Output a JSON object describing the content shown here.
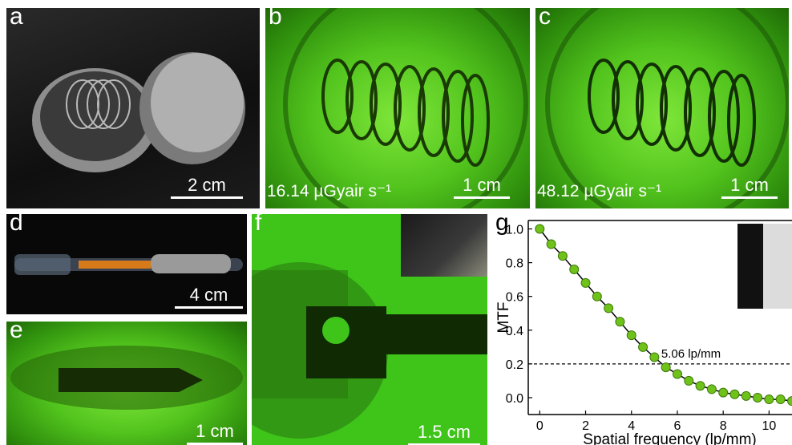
{
  "panels": {
    "a": {
      "label": "a",
      "scale": "2 cm"
    },
    "b": {
      "label": "b",
      "scale": "1 cm",
      "dose": "16.14 µGyair s⁻¹"
    },
    "c": {
      "label": "c",
      "scale": "1 cm",
      "dose": "48.12 µGyair s⁻¹"
    },
    "d": {
      "label": "d",
      "scale": "4 cm"
    },
    "e": {
      "label": "e",
      "scale": "1 cm"
    },
    "f": {
      "label": "f",
      "scale": "1.5 cm"
    },
    "g": {
      "label": "g"
    }
  },
  "chart_data": {
    "type": "line",
    "xlabel": "Spatial frequency (lp/mm)",
    "ylabel": "MTF",
    "xlim": [
      -0.5,
      11
    ],
    "ylim": [
      -0.1,
      1.05
    ],
    "xticks": [
      "0",
      "2",
      "4",
      "6",
      "8",
      "10"
    ],
    "yticks": [
      "0.0",
      "0.2",
      "0.4",
      "0.6",
      "0.8",
      "1.0"
    ],
    "x": [
      0,
      0.5,
      1.0,
      1.5,
      2.0,
      2.5,
      3.0,
      3.5,
      4.0,
      4.5,
      5.0,
      5.5,
      6.0,
      6.5,
      7.0,
      7.5,
      8.0,
      8.5,
      9.0,
      9.5,
      10.0,
      10.5,
      11.0
    ],
    "y": [
      1.0,
      0.91,
      0.84,
      0.76,
      0.68,
      0.6,
      0.53,
      0.45,
      0.37,
      0.3,
      0.24,
      0.18,
      0.14,
      0.1,
      0.07,
      0.05,
      0.03,
      0.02,
      0.01,
      0.0,
      -0.01,
      -0.01,
      -0.02
    ],
    "threshold": 0.2,
    "annotation": "5.06 lp/mm",
    "marker_color": "#6fc21a",
    "line_color": "#000000"
  }
}
